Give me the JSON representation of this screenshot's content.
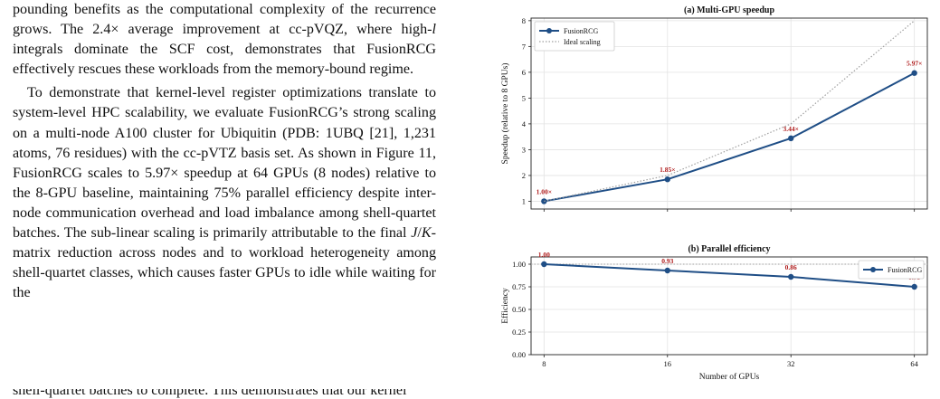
{
  "paragraphs": [
    "pounding benefits as the computational complexity of the recurrence grows. The 2.4× average improvement at cc-pVQZ, where high-l integrals dominate the SCF cost, demonstrates that FusionRCG effectively rescues these workloads from the memory-bound regime.",
    "To demonstrate that kernel-level register optimizations translate to system-level HPC scalability, we evaluate FusionRCG’s strong scaling on a multi-node A100 cluster for Ubiquitin (PDB: 1UBQ [21], 1,231 atoms, 76 residues) with the cc-pVTZ basis set. As shown in Figure 11, FusionRCG scales to 5.97× speedup at 64 GPUs (8 nodes) relative to the 8-GPU baseline, maintaining 75% parallel efficiency despite inter-node communication overhead and load imbalance among shell-quartet batches. The sub-linear scaling is primarily attributable to the final J/K-matrix reduction across nodes and to workload heterogeneity among shell-quartet classes, which causes faster GPUs to idle while waiting for the"
  ],
  "clipped_line": "shell-quartet batches to complete. This demonstrates that our kernel",
  "chart_data": [
    {
      "type": "line",
      "title": "(a)  Multi-GPU speedup",
      "xlabel": "",
      "ylabel": "Speedup (relative to 8 GPUs)",
      "x": [
        8,
        16,
        32,
        64
      ],
      "x_scale": "log2",
      "ylim": [
        0.7,
        8.1
      ],
      "yticks": [
        1,
        2,
        3,
        4,
        5,
        6,
        7,
        8
      ],
      "grid": true,
      "legend_position": "top-left",
      "series": [
        {
          "name": "FusionRCG",
          "values": [
            1.0,
            1.85,
            3.44,
            5.97
          ],
          "color": "#1f4e86",
          "style": "solid-markers"
        },
        {
          "name": "Ideal scaling",
          "values": [
            1,
            2,
            4,
            8
          ],
          "color": "#a0a0a0",
          "style": "dotted"
        }
      ],
      "data_labels": [
        "1.00×",
        "1.85×",
        "3.44×",
        "5.97×"
      ],
      "label_color": "#b01e1e"
    },
    {
      "type": "line",
      "title": "(b)  Parallel efficiency",
      "xlabel": "Number of GPUs",
      "ylabel": "Efficiency",
      "x": [
        8,
        16,
        32,
        64
      ],
      "x_scale": "log2",
      "xticks": [
        "8",
        "16",
        "32",
        "64"
      ],
      "ylim": [
        0,
        1.08
      ],
      "yticks": [
        "0.00",
        "0.25",
        "0.50",
        "0.75",
        "1.00"
      ],
      "grid": true,
      "legend_position": "top-right",
      "reference_line": 1.0,
      "series": [
        {
          "name": "FusionRCG",
          "values": [
            1.0,
            0.93,
            0.86,
            0.75
          ],
          "color": "#1f4e86",
          "style": "solid-markers"
        }
      ],
      "data_labels": [
        "1.00",
        "0.93",
        "0.86",
        "0.75"
      ],
      "label_color": "#b01e1e"
    }
  ]
}
